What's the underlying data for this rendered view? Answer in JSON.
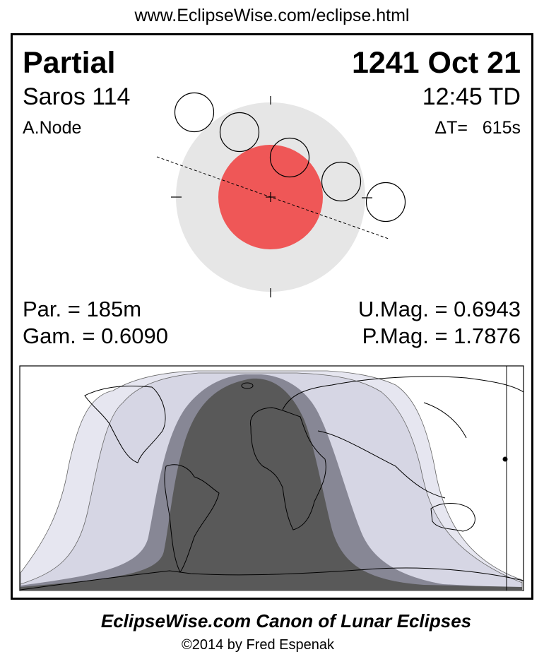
{
  "header": {
    "url": "www.EclipseWise.com/eclipse.html"
  },
  "eclipse": {
    "type": "Partial",
    "date": "1241 Oct 21",
    "saros": "Saros 114",
    "time": "12:45 TD",
    "node": "A.Node",
    "delta_t": "ΔT=   615s",
    "partial_duration": "Par. = 185m",
    "gamma": "Gam. = 0.6090",
    "umbral_magnitude": "U.Mag. = 0.6943",
    "penumbral_magnitude": "P.Mag. = 1.7876"
  },
  "colors": {
    "penumbra": "#e6e6e6",
    "umbra": "#ef5757",
    "map_light": "#e6e6f0",
    "map_mid_light": "#d6d6e4",
    "map_mid_dark": "#878795",
    "map_dark": "#595959"
  },
  "footer": {
    "title": "EclipseWise.com Canon of Lunar Eclipses",
    "copyright": "©2014 by Fred Espenak"
  }
}
